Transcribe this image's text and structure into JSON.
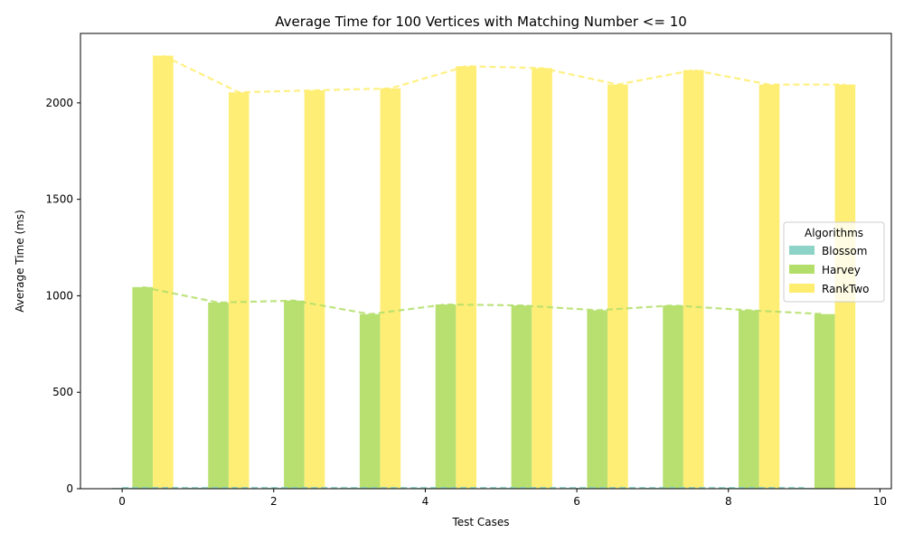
{
  "chart_data": {
    "type": "bar",
    "title": "Average Time for 100 Vertices with Matching Number <= 10",
    "xlabel": "Test Cases",
    "ylabel": "Average Time (ms)",
    "xlim": [
      -0.55,
      10.15
    ],
    "ylim": [
      0,
      2360
    ],
    "xticks": [
      0,
      2,
      4,
      6,
      8,
      10
    ],
    "yticks": [
      0,
      500,
      1000,
      1500,
      2000
    ],
    "x": [
      0,
      1,
      2,
      3,
      4,
      5,
      6,
      7,
      8,
      9
    ],
    "bar_width": 0.27,
    "grid": false,
    "legend": {
      "title": "Algorithms",
      "position": "center-right"
    },
    "series": [
      {
        "name": "Blossom",
        "color": "#8dd3c7",
        "offset": 0.0,
        "values": [
          4,
          4,
          4,
          4,
          4,
          4,
          4,
          4,
          4,
          4
        ]
      },
      {
        "name": "Harvey",
        "color": "#b3de69",
        "offset": 0.27,
        "values": [
          1045,
          965,
          975,
          905,
          955,
          950,
          925,
          950,
          925,
          905
        ]
      },
      {
        "name": "RankTwo",
        "color": "#ffed6f",
        "offset": 0.54,
        "values": [
          2245,
          2055,
          2065,
          2075,
          2190,
          2180,
          2095,
          2170,
          2095,
          2095
        ]
      }
    ]
  }
}
